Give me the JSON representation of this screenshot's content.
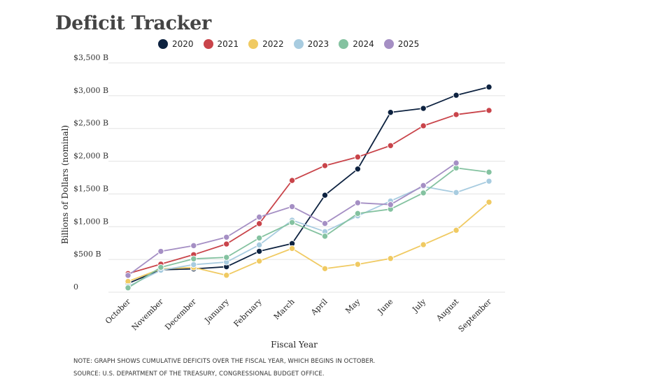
{
  "chart_data": {
    "type": "line",
    "title": "Deficit Tracker",
    "xlabel": "Fiscal Year",
    "ylabel": "Billions of Dollars (nominal)",
    "ylim": [
      0,
      3500
    ],
    "yticks": [
      {
        "value": 0,
        "label": "0"
      },
      {
        "value": 500,
        "label": "$500 B"
      },
      {
        "value": 1000,
        "label": "$1,000 B"
      },
      {
        "value": 1500,
        "label": "$1,500 B"
      },
      {
        "value": 2000,
        "label": "$2,000 B"
      },
      {
        "value": 2500,
        "label": "$2,500 B"
      },
      {
        "value": 3000,
        "label": "$3,000 B"
      },
      {
        "value": 3500,
        "label": "$3,500 B"
      }
    ],
    "grid": true,
    "legend_position": "top",
    "categories": [
      "October",
      "November",
      "December",
      "January",
      "February",
      "March",
      "April",
      "May",
      "June",
      "July",
      "August",
      "September"
    ],
    "series": [
      {
        "name": "2020",
        "color": "#0d2240",
        "values": [
          134,
          343,
          356,
          389,
          625,
          743,
          1481,
          1881,
          2745,
          2806,
          3007,
          3132
        ]
      },
      {
        "name": "2021",
        "color": "#c9444a",
        "values": [
          284,
          429,
          573,
          736,
          1047,
          1706,
          1932,
          2064,
          2238,
          2540,
          2711,
          2775
        ]
      },
      {
        "name": "2022",
        "color": "#f0ca62",
        "values": [
          165,
          356,
          378,
          259,
          476,
          668,
          360,
          426,
          515,
          726,
          946,
          1375
        ]
      },
      {
        "name": "2023",
        "color": "#a8cce0",
        "values": [
          88,
          336,
          421,
          460,
          722,
          1100,
          925,
          1165,
          1392,
          1614,
          1522,
          1695
        ]
      },
      {
        "name": "2024",
        "color": "#84c2a0",
        "values": [
          67,
          380,
          510,
          532,
          828,
          1065,
          855,
          1202,
          1268,
          1516,
          1897,
          1833
        ]
      },
      {
        "name": "2025",
        "color": "#a58fc4",
        "values": [
          257,
          624,
          711,
          840,
          1147,
          1307,
          1049,
          1365,
          1337,
          1629,
          1973,
          null
        ]
      }
    ]
  },
  "notes": {
    "line1": "NOTE: GRAPH SHOWS CUMULATIVE DEFICITS OVER THE FISCAL YEAR, WHICH BEGINS IN OCTOBER.",
    "line2": "SOURCE: U.S. DEPARTMENT OF THE TREASURY, CONGRESSIONAL BUDGET OFFICE."
  }
}
